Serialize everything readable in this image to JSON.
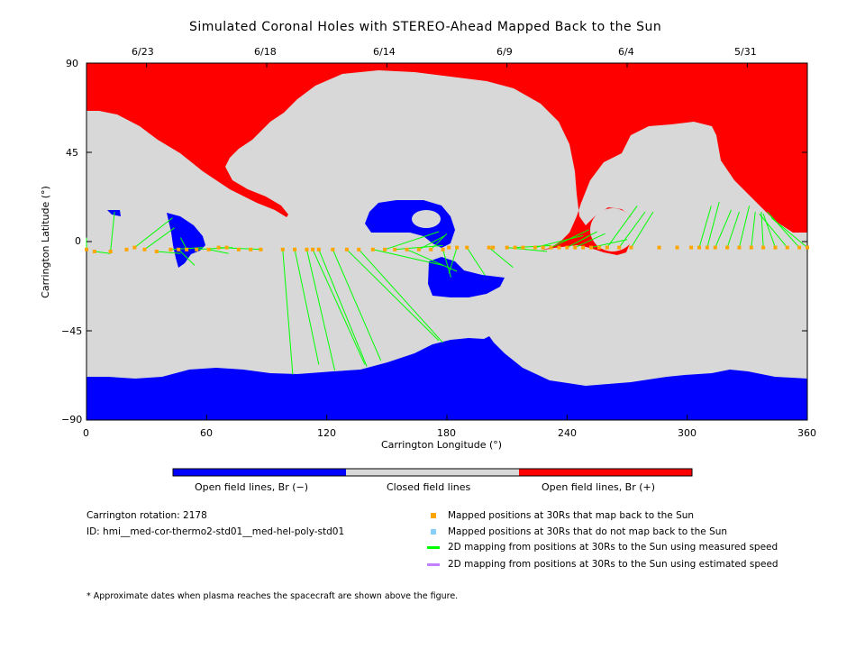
{
  "chart_data": {
    "type": "map",
    "title": "Simulated Coronal Holes with STEREO-Ahead Mapped Back to the Sun",
    "xlabel": "Carrington Longitude (°)",
    "ylabel": "Carrington Latitude (°)",
    "xlim": [
      0,
      360
    ],
    "ylim": [
      -90,
      90
    ],
    "x_ticks": [
      "0",
      "60",
      "120",
      "180",
      "240",
      "300",
      "360"
    ],
    "y_ticks": [
      "90",
      "45",
      "0",
      "−45",
      "−90"
    ],
    "top_dates": [
      {
        "label": "6/23",
        "lon": 30
      },
      {
        "label": "6/18",
        "lon": 90
      },
      {
        "label": "6/14",
        "lon": 150
      },
      {
        "label": "6/9",
        "lon": 210
      },
      {
        "label": "6/4",
        "lon": 270
      },
      {
        "label": "5/31",
        "lon": 330
      }
    ],
    "colorbar": [
      {
        "label": "Open field lines, Br (−)",
        "color": "#0000ff"
      },
      {
        "label": "Closed field lines",
        "color": "#d8d8d8"
      },
      {
        "label": "Open field lines, Br (+)",
        "color": "#ff0000"
      }
    ],
    "mapped_points": [
      [
        0,
        -4
      ],
      [
        4,
        -5
      ],
      [
        12,
        -5
      ],
      [
        20,
        -4
      ],
      [
        24,
        -3
      ],
      [
        29,
        -4
      ],
      [
        35,
        -5
      ],
      [
        42,
        -4
      ],
      [
        46,
        -4
      ],
      [
        50,
        -4
      ],
      [
        55,
        -4
      ],
      [
        61,
        -4
      ],
      [
        66,
        -3
      ],
      [
        70,
        -3
      ],
      [
        76,
        -4
      ],
      [
        82,
        -4
      ],
      [
        87,
        -4
      ],
      [
        98,
        -4
      ],
      [
        104,
        -4
      ],
      [
        110,
        -4
      ],
      [
        113,
        -4
      ],
      [
        116,
        -4
      ],
      [
        123,
        -4
      ],
      [
        130,
        -4
      ],
      [
        136,
        -4
      ],
      [
        143,
        -4
      ],
      [
        149,
        -4
      ],
      [
        154,
        -4
      ],
      [
        160,
        -4
      ],
      [
        166,
        -4
      ],
      [
        172,
        -4
      ],
      [
        178,
        -4
      ],
      [
        181,
        -3
      ],
      [
        185,
        -3
      ],
      [
        190,
        -3
      ],
      [
        201,
        -3
      ],
      [
        203,
        -3
      ],
      [
        210,
        -3
      ],
      [
        214,
        -3
      ],
      [
        218,
        -3
      ],
      [
        224,
        -3
      ],
      [
        228,
        -3
      ],
      [
        232,
        -3
      ],
      [
        236,
        -3
      ],
      [
        240,
        -3
      ],
      [
        244,
        -3
      ],
      [
        248,
        -3
      ],
      [
        252,
        -3
      ],
      [
        256,
        -3
      ],
      [
        260,
        -3
      ],
      [
        266,
        -3
      ],
      [
        272,
        -3
      ],
      [
        286,
        -3
      ],
      [
        295,
        -3
      ],
      [
        302,
        -3
      ],
      [
        306,
        -3
      ],
      [
        310,
        -3
      ],
      [
        314,
        -3
      ],
      [
        320,
        -3
      ],
      [
        326,
        -3
      ],
      [
        332,
        -3
      ],
      [
        338,
        -3
      ],
      [
        344,
        -3
      ],
      [
        350,
        -3
      ],
      [
        356,
        -3
      ],
      [
        360,
        -3
      ]
    ],
    "mapping_lines": [
      [
        [
          0,
          -4
        ],
        [
          0,
          2
        ]
      ],
      [
        [
          4,
          -5
        ],
        [
          12,
          -6
        ]
      ],
      [
        [
          12,
          -5
        ],
        [
          14,
          15
        ]
      ],
      [
        [
          24,
          -3
        ],
        [
          43,
          12
        ]
      ],
      [
        [
          29,
          -4
        ],
        [
          44,
          7
        ]
      ],
      [
        [
          35,
          -5
        ],
        [
          47,
          -6
        ]
      ],
      [
        [
          42,
          -4
        ],
        [
          58,
          -3
        ]
      ],
      [
        [
          46,
          -4
        ],
        [
          54,
          -12
        ]
      ],
      [
        [
          50,
          -4
        ],
        [
          47,
          2
        ]
      ],
      [
        [
          55,
          -4
        ],
        [
          73,
          -3
        ]
      ],
      [
        [
          61,
          -4
        ],
        [
          71,
          -6
        ]
      ],
      [
        [
          66,
          -3
        ],
        [
          88,
          -4
        ]
      ],
      [
        [
          98,
          -4
        ],
        [
          103,
          -67
        ]
      ],
      [
        [
          104,
          -4
        ],
        [
          116,
          -62
        ]
      ],
      [
        [
          110,
          -4
        ],
        [
          124,
          -65
        ]
      ],
      [
        [
          113,
          -4
        ],
        [
          139,
          -62
        ]
      ],
      [
        [
          116,
          -4
        ],
        [
          140,
          -63
        ]
      ],
      [
        [
          123,
          -4
        ],
        [
          147,
          -60
        ]
      ],
      [
        [
          130,
          -4
        ],
        [
          176,
          -50
        ]
      ],
      [
        [
          136,
          -4
        ],
        [
          178,
          -51
        ]
      ],
      [
        [
          143,
          -4
        ],
        [
          178,
          -12
        ]
      ],
      [
        [
          149,
          -4
        ],
        [
          176,
          5
        ]
      ],
      [
        [
          154,
          -4
        ],
        [
          178,
          -2
        ]
      ],
      [
        [
          160,
          -4
        ],
        [
          185,
          -15
        ]
      ],
      [
        [
          166,
          -4
        ],
        [
          179,
          3
        ]
      ],
      [
        [
          172,
          -4
        ],
        [
          180,
          4
        ]
      ],
      [
        [
          178,
          -4
        ],
        [
          182,
          -18
        ]
      ],
      [
        [
          185,
          -3
        ],
        [
          181,
          -16
        ]
      ],
      [
        [
          190,
          -3
        ],
        [
          199,
          -17
        ]
      ],
      [
        [
          201,
          -3
        ],
        [
          213,
          -13
        ]
      ],
      [
        [
          210,
          -3
        ],
        [
          230,
          -5
        ]
      ],
      [
        [
          214,
          -3
        ],
        [
          232,
          -2
        ]
      ],
      [
        [
          224,
          -3
        ],
        [
          248,
          3
        ]
      ],
      [
        [
          232,
          -3
        ],
        [
          251,
          6
        ]
      ],
      [
        [
          240,
          -3
        ],
        [
          255,
          5
        ]
      ],
      [
        [
          244,
          -3
        ],
        [
          259,
          4
        ]
      ],
      [
        [
          252,
          -3
        ],
        [
          270,
          1
        ]
      ],
      [
        [
          260,
          -3
        ],
        [
          275,
          18
        ]
      ],
      [
        [
          266,
          -3
        ],
        [
          279,
          15
        ]
      ],
      [
        [
          272,
          -3
        ],
        [
          283,
          15
        ]
      ],
      [
        [
          306,
          -3
        ],
        [
          312,
          18
        ]
      ],
      [
        [
          310,
          -3
        ],
        [
          316,
          20
        ]
      ],
      [
        [
          314,
          -3
        ],
        [
          322,
          16
        ]
      ],
      [
        [
          320,
          -3
        ],
        [
          326,
          15
        ]
      ],
      [
        [
          326,
          -3
        ],
        [
          331,
          18
        ]
      ],
      [
        [
          332,
          -3
        ],
        [
          334,
          15
        ]
      ],
      [
        [
          338,
          -3
        ],
        [
          337,
          15
        ]
      ],
      [
        [
          344,
          -3
        ],
        [
          338,
          14
        ]
      ],
      [
        [
          350,
          -3
        ],
        [
          336,
          14
        ]
      ],
      [
        [
          356,
          -3
        ],
        [
          340,
          15
        ]
      ],
      [
        [
          360,
          -3
        ],
        [
          342,
          12
        ]
      ]
    ]
  },
  "info": {
    "rotation": "Carrington rotation: 2178",
    "id": "ID: hmi__med-cor-thermo2-std01__med-hel-poly-std01",
    "note": "* Approximate dates when plasma reaches the spacecraft are shown above the figure."
  },
  "legend": [
    {
      "label": "Mapped positions at 30Rs that map back to the Sun",
      "color": "#ffa500",
      "kind": "square"
    },
    {
      "label": "Mapped positions at 30Rs that do not map back to the Sun",
      "color": "#87cefa",
      "kind": "square"
    },
    {
      "label": "2D mapping from positions at 30Rs to the Sun using measured speed",
      "color": "#00ff00",
      "kind": "line"
    },
    {
      "label": "2D mapping from positions at 30Rs to the Sun using estimated speed",
      "color": "#c080ff",
      "kind": "line"
    }
  ]
}
